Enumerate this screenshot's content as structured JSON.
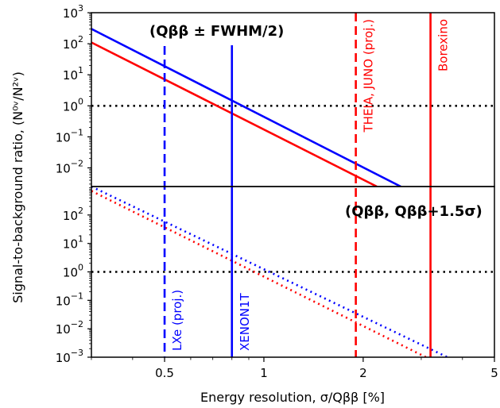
{
  "chart_data": {
    "type": "line",
    "xlabel": "Energy resolution, σ/Qββ [%]",
    "ylabel": "Signal-to-background ratio, (N⁰ᵛ/N²ᵛ)",
    "xscale": "log",
    "yscale": "log",
    "xlim": [
      0.3,
      5
    ],
    "x_ticks": [
      {
        "value": 0.5,
        "label": "0.5"
      },
      {
        "value": 1,
        "label": "1"
      },
      {
        "value": 2,
        "label": "2"
      },
      {
        "value": 5,
        "label": "5"
      }
    ],
    "panels": [
      {
        "id": "top",
        "title": "(Qββ ± FWHM/2)",
        "ylim": [
          0.0025,
          1000
        ],
        "y_ticks": [
          {
            "value": 1000,
            "base": "10",
            "exp": "3"
          },
          {
            "value": 100,
            "base": "10",
            "exp": "2"
          },
          {
            "value": 10,
            "base": "10",
            "exp": "1"
          },
          {
            "value": 1,
            "base": "10",
            "exp": "0"
          },
          {
            "value": 0.1,
            "base": "10",
            "exp": "−1"
          },
          {
            "value": 0.01,
            "base": "10",
            "exp": "−2"
          }
        ],
        "reference_line": 1,
        "series": [
          {
            "color": "#0000ff",
            "style": "solid",
            "points": [
              [
                0.3,
                300
              ],
              [
                2.6,
                0.0025
              ]
            ]
          },
          {
            "color": "#ff0000",
            "style": "solid",
            "points": [
              [
                0.3,
                110
              ],
              [
                2.2,
                0.0025
              ]
            ]
          }
        ]
      },
      {
        "id": "bottom",
        "title": "(Qββ, Qββ+1.5σ)",
        "ylim": [
          0.001,
          1000
        ],
        "y_ticks": [
          {
            "value": 100,
            "base": "10",
            "exp": "2"
          },
          {
            "value": 10,
            "base": "10",
            "exp": "1"
          },
          {
            "value": 1,
            "base": "10",
            "exp": "0"
          },
          {
            "value": 0.1,
            "base": "10",
            "exp": "−1"
          },
          {
            "value": 0.01,
            "base": "10",
            "exp": "−2"
          },
          {
            "value": 0.001,
            "base": "10",
            "exp": "−3"
          }
        ],
        "reference_line": 1,
        "series": [
          {
            "color": "#0000ff",
            "style": "dotted",
            "points": [
              [
                0.3,
                1000
              ],
              [
                3.6,
                0.001
              ]
            ]
          },
          {
            "color": "#ff0000",
            "style": "dotted",
            "points": [
              [
                0.3,
                700
              ],
              [
                3.1,
                0.001
              ]
            ]
          }
        ]
      }
    ],
    "vertical_lines": [
      {
        "x": 0.5,
        "color": "#0000ff",
        "style": "dashed",
        "label": "LXe (proj.)",
        "label_panel": "bottom"
      },
      {
        "x": 0.8,
        "color": "#0000ff",
        "style": "solid",
        "label": "XENON1T",
        "label_panel": "bottom"
      },
      {
        "x": 1.9,
        "color": "#ff0000",
        "style": "dashed",
        "label": "THEIA, JUNO (proj.)",
        "label_panel": "top"
      },
      {
        "x": 3.2,
        "color": "#ff0000",
        "style": "solid",
        "label": "Borexino",
        "label_panel": "top"
      }
    ]
  }
}
